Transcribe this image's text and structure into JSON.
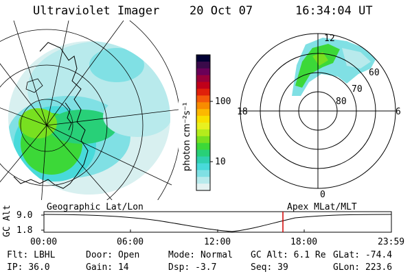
{
  "header": {
    "instrument": "Ultraviolet Imager",
    "date": "20 Oct 07",
    "time": "16:34:04 UT"
  },
  "colorbar": {
    "label": "photon cm⁻²s⁻¹",
    "ticks": [
      "100",
      "10"
    ],
    "colors": [
      "#000033",
      "#3a0a4a",
      "#6a0058",
      "#98003a",
      "#c0001a",
      "#e0200a",
      "#f45a0a",
      "#f88c00",
      "#fcb800",
      "#f8e000",
      "#e8f020",
      "#b4ec1c",
      "#78e020",
      "#3cd838",
      "#28d078",
      "#30d0b0",
      "#48dada",
      "#80e0e4",
      "#b8eaec",
      "#e4f2f2"
    ]
  },
  "polar_plot": {
    "mlt_labels": [
      "12",
      "18",
      "6",
      "0"
    ],
    "lat_labels": [
      "60",
      "70",
      "80"
    ]
  },
  "timeline": {
    "left_label": "Geographic Lat/Lon",
    "right_label": "Apex MLat/MLT",
    "axis_label": "GC Alt",
    "y_ticks": [
      "9.0",
      "1.8"
    ],
    "x_ticks": [
      "00:00",
      "06:00",
      "12:00",
      "18:00",
      "23:59"
    ],
    "current_time_marker": "16:34",
    "marker_color": "#d00000"
  },
  "info": {
    "row1": [
      {
        "label": "Flt:",
        "value": "LBHL"
      },
      {
        "label": "Door:",
        "value": "Open"
      },
      {
        "label": "Mode:",
        "value": "Normal"
      },
      {
        "label": "GC Alt:",
        "value": "6.1 Re"
      },
      {
        "label": "GLat:",
        "value": "-74.4"
      }
    ],
    "row2": [
      {
        "label": "IP:",
        "value": "36.0"
      },
      {
        "label": "Gain:",
        "value": "14"
      },
      {
        "label": "Dsp:",
        "value": "-3.7"
      },
      {
        "label": "Seq:",
        "value": "39"
      },
      {
        "label": "GLon:",
        "value": "223.6"
      }
    ]
  }
}
